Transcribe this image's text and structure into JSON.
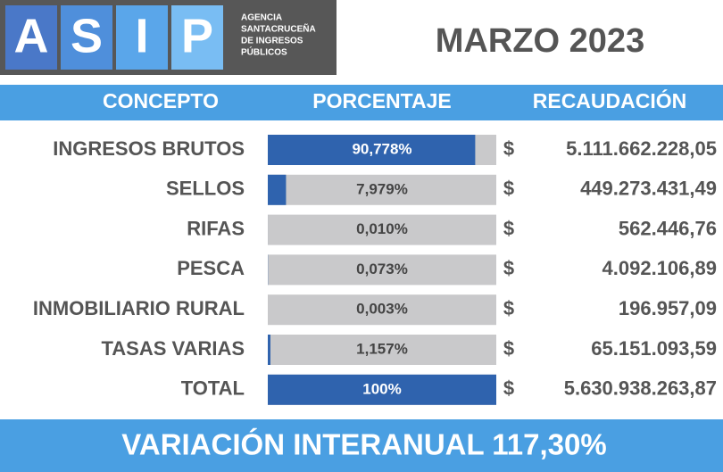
{
  "header": {
    "logo_letters": [
      "A",
      "S",
      "I",
      "P"
    ],
    "agency": [
      "AGENCIA",
      "SANTACRUCEÑA",
      "DE INGRESOS",
      "PÚBLICOS"
    ],
    "title": "MARZO 2023"
  },
  "chart_data": {
    "type": "bar",
    "columns": [
      "CONCEPTO",
      "PORCENTAJE",
      "RECAUDACIÓN"
    ],
    "categories": [
      "INGRESOS BRUTOS",
      "SELLOS",
      "RIFAS",
      "PESCA",
      "INMOBILIARIO RURAL",
      "TASAS VARIAS",
      "TOTAL"
    ],
    "values": [
      90.778,
      7.979,
      0.01,
      0.073,
      0.003,
      1.157,
      100
    ],
    "value_labels": [
      "90,778%",
      "7,979%",
      "0,010%",
      "0,073%",
      "0,003%",
      "1,157%",
      "100%"
    ],
    "xlim": [
      0,
      100
    ],
    "color": "#2f63ae",
    "track_color": "#c9c9cb",
    "currency": "$",
    "amounts": [
      "5.111.662.228,05",
      "449.273.431,49",
      "562.446,76",
      "4.092.106,89",
      "196.957,09",
      "65.151.093,59",
      "5.630.938.263,87"
    ]
  },
  "footer": "VARIACIÓN INTERANUAL 117,30%"
}
